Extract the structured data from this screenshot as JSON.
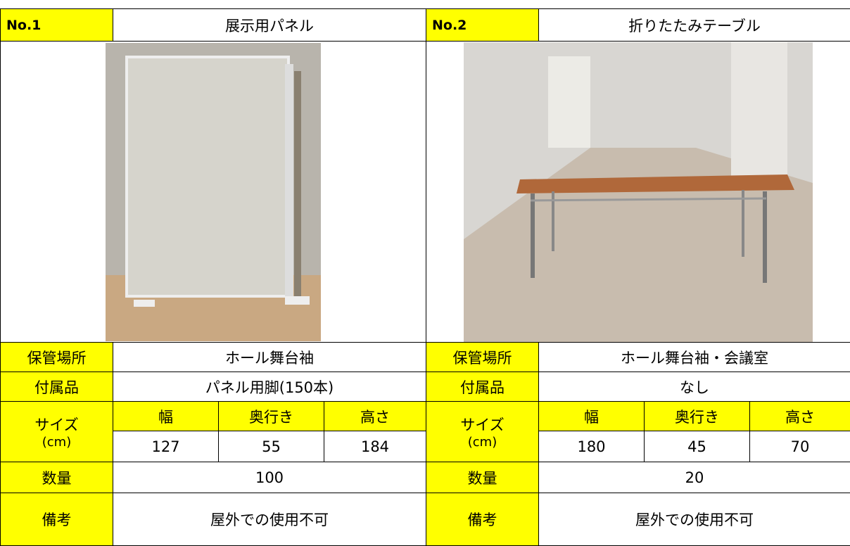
{
  "panels": [
    {
      "number": "No.1",
      "name": "展示用パネル",
      "storage_label": "保管場所",
      "storage": "ホール舞台袖",
      "accessories_label": "付属品",
      "accessories": "パネル用脚(150本)",
      "size_label": "サイズ",
      "size_unit": "(cm)",
      "size_headers": [
        "幅",
        "奥行き",
        "高さ"
      ],
      "size_values": [
        127,
        55,
        184
      ],
      "quantity_label": "数量",
      "quantity": 100,
      "remarks_label": "備考",
      "remarks": "屋外での使用不可"
    },
    {
      "number": "No.2",
      "name": "折りたたみテーブル",
      "storage_label": "保管場所",
      "storage": "ホール舞台袖・会議室",
      "accessories_label": "付属品",
      "accessories": "なし",
      "size_label": "サイズ",
      "size_unit": "(cm)",
      "size_headers": [
        "幅",
        "奥行き",
        "高さ"
      ],
      "size_values": [
        180,
        45,
        70
      ],
      "quantity_label": "数量",
      "quantity": 20,
      "remarks_label": "備考",
      "remarks": "屋外での使用不可"
    }
  ]
}
